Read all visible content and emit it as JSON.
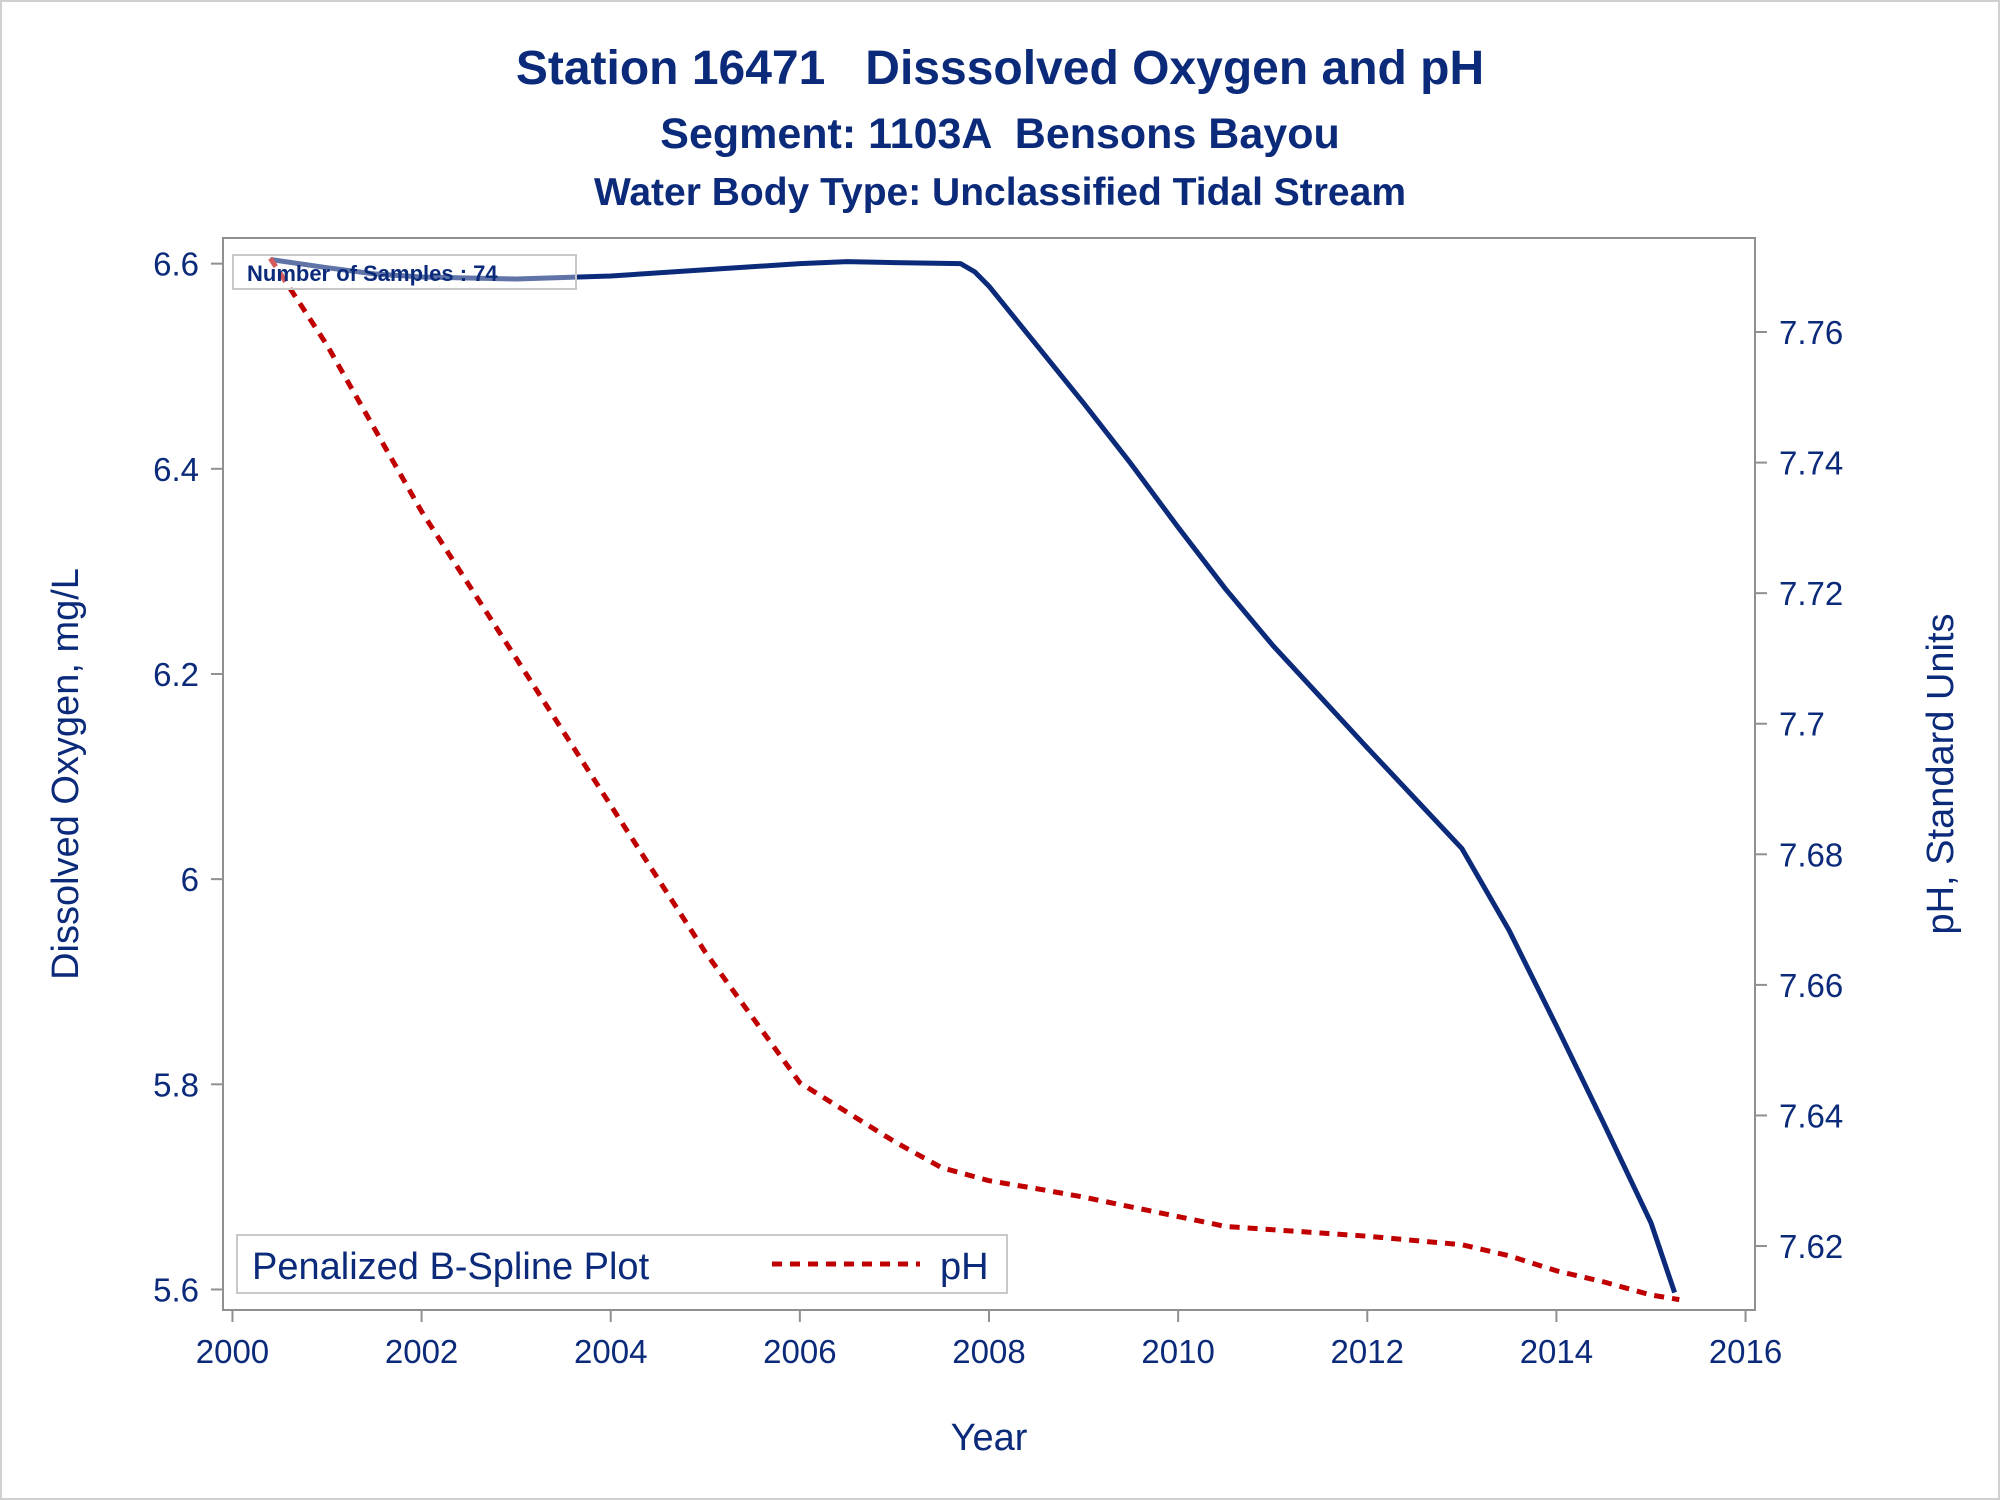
{
  "chart_data": {
    "type": "line",
    "title": "Station 16471   Disssolved Oxygen and pH",
    "subtitle": "Segment: 1103A  Bensons Bayou",
    "subtitle2": "Water Body Type: Unclassified Tidal Stream",
    "xlabel": "Year",
    "ylabel": "Dissolved Oxygen, mg/L",
    "y2label": "pH, Standard Units",
    "xlim": [
      1999.9,
      2016.1
    ],
    "ylim": [
      5.58,
      6.625
    ],
    "y2lim": [
      7.6102,
      7.7744
    ],
    "xticks": [
      "2000",
      "2002",
      "2004",
      "2006",
      "2008",
      "2010",
      "2012",
      "2014",
      "2016"
    ],
    "yticks": [
      "5.6",
      "5.8",
      "6",
      "6.2",
      "6.4",
      "6.6"
    ],
    "y2ticks": [
      "7.62",
      "7.64",
      "7.66",
      "7.68",
      "7.7",
      "7.72",
      "7.74",
      "7.76"
    ],
    "inset_label": "Number of Samples : 74",
    "legend_title": "Penalized B-Spline Plot",
    "legend_placement": "bottom-left",
    "series": [
      {
        "axis": "left",
        "color": "#0b2a7a",
        "dash": "solid",
        "points": [
          [
            2000.4,
            6.604
          ],
          [
            2001.0,
            6.596
          ],
          [
            2001.5,
            6.59
          ],
          [
            2002.0,
            6.587
          ],
          [
            2003.0,
            6.585
          ],
          [
            2004.0,
            6.588
          ],
          [
            2005.0,
            6.594
          ],
          [
            2006.0,
            6.6
          ],
          [
            2006.5,
            6.602
          ],
          [
            2007.0,
            6.601
          ],
          [
            2007.7,
            6.6
          ],
          [
            2007.85,
            6.592
          ],
          [
            2008.0,
            6.578
          ],
          [
            2008.5,
            6.521
          ],
          [
            2009.0,
            6.464
          ],
          [
            2009.5,
            6.405
          ],
          [
            2010.0,
            6.343
          ],
          [
            2010.5,
            6.283
          ],
          [
            2011.0,
            6.228
          ],
          [
            2011.5,
            6.178
          ],
          [
            2012.0,
            6.128
          ],
          [
            2012.5,
            6.079
          ],
          [
            2013.0,
            6.03
          ],
          [
            2013.5,
            5.95
          ],
          [
            2014.0,
            5.857
          ],
          [
            2014.5,
            5.762
          ],
          [
            2015.0,
            5.665
          ],
          [
            2015.25,
            5.597
          ]
        ]
      },
      {
        "name": "pH",
        "axis": "right",
        "color": "#c00000",
        "dash": "dashed",
        "points": [
          [
            2000.4,
            7.7713
          ],
          [
            2001.0,
            7.758
          ],
          [
            2002.0,
            7.7325
          ],
          [
            2003.0,
            7.71
          ],
          [
            2004.0,
            7.6875
          ],
          [
            2005.0,
            7.665
          ],
          [
            2006.0,
            7.645
          ],
          [
            2006.5,
            7.6405
          ],
          [
            2007.0,
            7.636
          ],
          [
            2007.5,
            7.632
          ],
          [
            2008.0,
            7.63
          ],
          [
            2008.5,
            7.6288
          ],
          [
            2009.0,
            7.6275
          ],
          [
            2010.0,
            7.6245
          ],
          [
            2010.5,
            7.623
          ],
          [
            2011.0,
            7.6225
          ],
          [
            2012.0,
            7.6215
          ],
          [
            2013.0,
            7.6202
          ],
          [
            2013.5,
            7.6185
          ],
          [
            2014.0,
            7.6162
          ],
          [
            2014.5,
            7.6145
          ],
          [
            2015.0,
            7.6125
          ],
          [
            2015.3,
            7.6118
          ]
        ]
      }
    ]
  }
}
